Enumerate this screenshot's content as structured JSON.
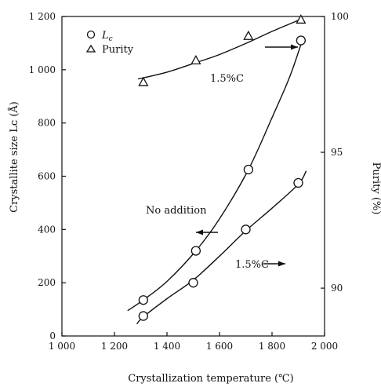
{
  "chart_data": {
    "type": "scatter",
    "title": "",
    "xlabel": "Crystallization temperature (℃)",
    "ylabel_left": "Crystallite size  Lᴄ (Å)",
    "ylabel_right": "Purity (%)",
    "xlim": [
      1000,
      2000
    ],
    "ylim_left": [
      0,
      1200
    ],
    "ylim_right": [
      88.24,
      100
    ],
    "x_ticks": [
      "1 000",
      "1 200",
      "1 400",
      "1 600",
      "1 800",
      "2 000"
    ],
    "x_tick_values": [
      1000,
      1200,
      1400,
      1600,
      1800,
      2000
    ],
    "y_left_ticks": [
      "0",
      "200",
      "400",
      "600",
      "800",
      "1 000",
      "1 200"
    ],
    "y_left_tick_values": [
      0,
      200,
      400,
      600,
      800,
      1000,
      1200
    ],
    "y_right_ticks": [
      "90",
      "95",
      "100"
    ],
    "y_right_tick_values": [
      90,
      95,
      100
    ],
    "legend": {
      "position": "top-left",
      "entries": [
        {
          "marker": "circle",
          "label": "L",
          "sub": "c"
        },
        {
          "marker": "triangle",
          "label": "Purity"
        }
      ]
    },
    "series": [
      {
        "key": "lc_no_addition",
        "marker": "circle",
        "axis": "left",
        "label": "No addition",
        "points": [
          [
            1310,
            135
          ],
          [
            1510,
            320
          ],
          [
            1710,
            625
          ],
          [
            1910,
            1110
          ]
        ],
        "curve": [
          [
            1250,
            95
          ],
          [
            1310,
            135
          ],
          [
            1400,
            205
          ],
          [
            1510,
            320
          ],
          [
            1600,
            440
          ],
          [
            1710,
            625
          ],
          [
            1800,
            820
          ],
          [
            1870,
            980
          ],
          [
            1920,
            1125
          ]
        ],
        "arrow": "left"
      },
      {
        "key": "lc_15C",
        "marker": "circle",
        "axis": "left",
        "label": "1.5%C",
        "points": [
          [
            1310,
            75
          ],
          [
            1500,
            200
          ],
          [
            1700,
            400
          ],
          [
            1900,
            575
          ]
        ],
        "curve": [
          [
            1285,
            45
          ],
          [
            1310,
            72
          ],
          [
            1400,
            140
          ],
          [
            1500,
            210
          ],
          [
            1600,
            300
          ],
          [
            1700,
            395
          ],
          [
            1800,
            480
          ],
          [
            1900,
            570
          ],
          [
            1930,
            620
          ]
        ],
        "arrow": "right"
      },
      {
        "key": "purity_15C",
        "marker": "triangle",
        "axis": "right",
        "label": "1.5%C",
        "points": [
          [
            1310,
            97.6
          ],
          [
            1510,
            98.4
          ],
          [
            1710,
            99.3
          ],
          [
            1910,
            99.9
          ]
        ],
        "curve": [
          [
            1290,
            97.7
          ],
          [
            1400,
            97.95
          ],
          [
            1510,
            98.3
          ],
          [
            1600,
            98.6
          ],
          [
            1710,
            99.05
          ],
          [
            1800,
            99.45
          ],
          [
            1910,
            99.9
          ]
        ],
        "arrow": "right"
      }
    ]
  }
}
